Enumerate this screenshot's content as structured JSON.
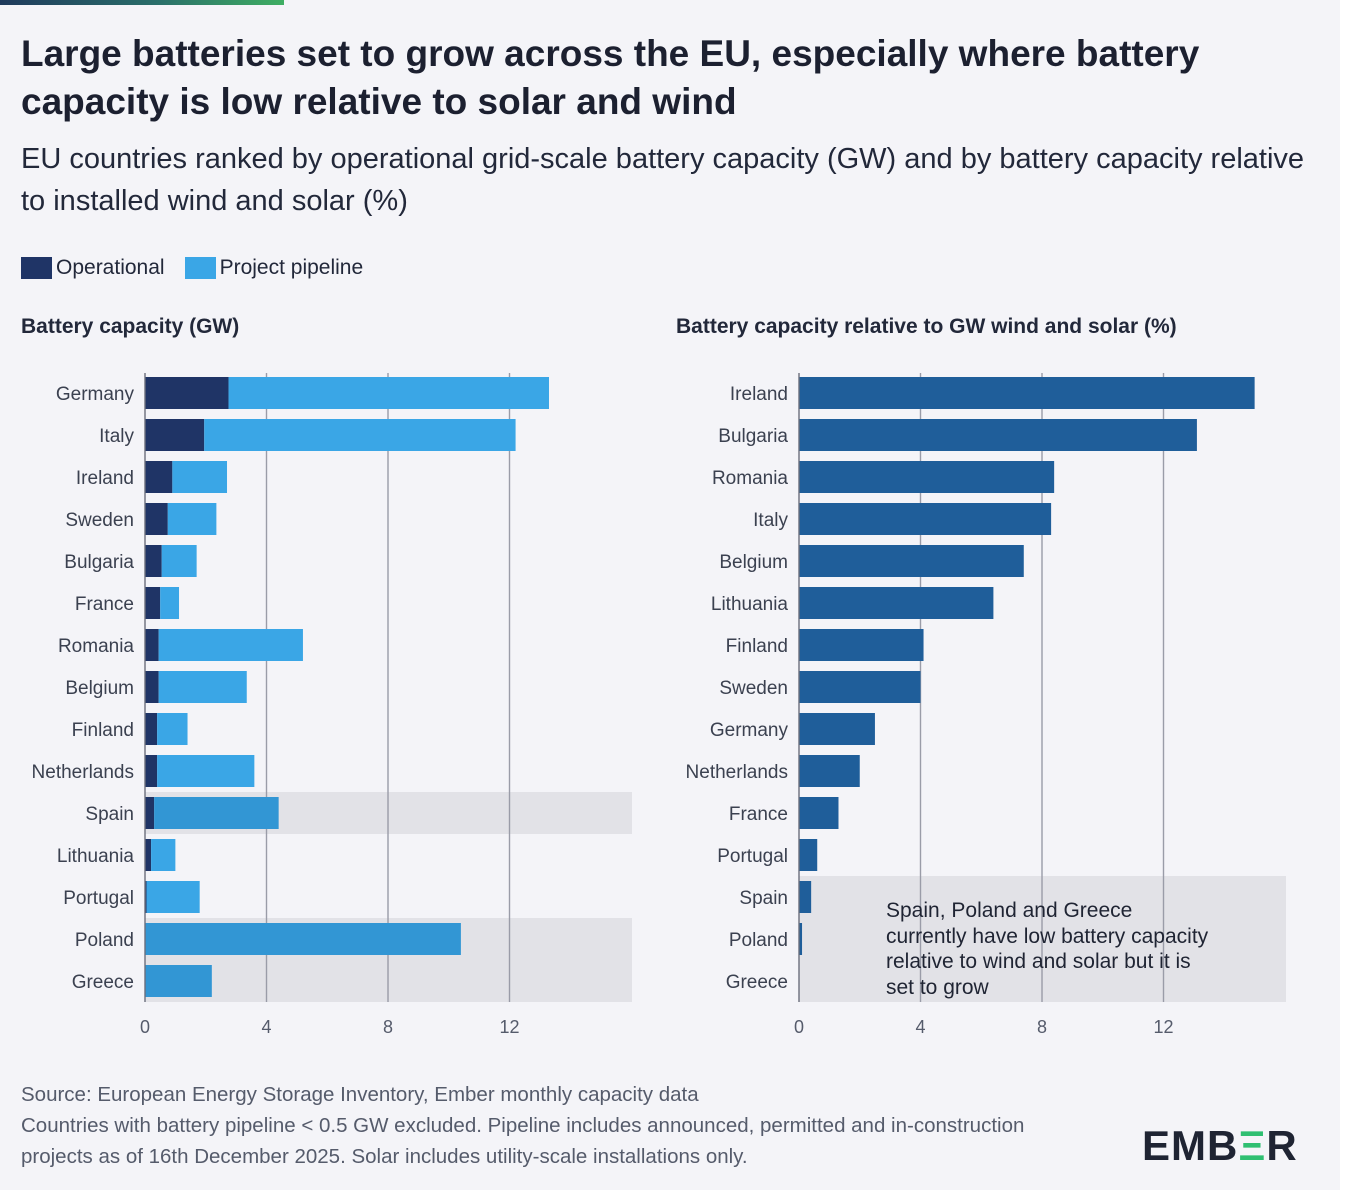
{
  "title": "Large batteries set to grow across the EU, especially where battery capacity is low relative to solar and wind",
  "subtitle": "EU countries ranked by operational grid-scale battery capacity (GW) and by battery capacity relative to installed wind and solar (%)",
  "legend": {
    "operational": "Operational",
    "pipeline": "Project pipeline"
  },
  "colors": {
    "operational": "#1f3466",
    "pipeline": "#3aa6e6",
    "pipeline_highlight": "#3296d4",
    "relative": "#1f5e9a",
    "highlight_band": "#e2e2e7",
    "grid": "#9a9ca8"
  },
  "chart_data": [
    {
      "type": "bar",
      "orientation": "horizontal",
      "stacked": true,
      "title": "Battery capacity (GW)",
      "categories": [
        "Germany",
        "Italy",
        "Ireland",
        "Sweden",
        "Bulgaria",
        "France",
        "Romania",
        "Belgium",
        "Finland",
        "Netherlands",
        "Spain",
        "Lithuania",
        "Portugal",
        "Poland",
        "Greece"
      ],
      "series": [
        {
          "name": "Operational",
          "values": [
            2.75,
            1.95,
            0.9,
            0.75,
            0.55,
            0.5,
            0.45,
            0.45,
            0.4,
            0.4,
            0.3,
            0.2,
            0.05,
            0.0,
            0.0
          ]
        },
        {
          "name": "Project pipeline",
          "values": [
            10.55,
            10.25,
            1.8,
            1.6,
            1.15,
            0.62,
            4.75,
            2.9,
            1.0,
            3.2,
            4.1,
            0.8,
            1.75,
            10.4,
            2.2
          ]
        }
      ],
      "highlighted": [
        "Spain",
        "Poland",
        "Greece"
      ],
      "xlim": [
        0,
        16
      ],
      "xticks": [
        0,
        4,
        8,
        12
      ],
      "grid": true
    },
    {
      "type": "bar",
      "orientation": "horizontal",
      "title": "Battery capacity relative to GW wind and solar (%)",
      "categories": [
        "Ireland",
        "Bulgaria",
        "Romania",
        "Italy",
        "Belgium",
        "Lithuania",
        "Finland",
        "Sweden",
        "Germany",
        "Netherlands",
        "France",
        "Portugal",
        "Spain",
        "Poland",
        "Greece"
      ],
      "values": [
        15.0,
        13.1,
        8.4,
        8.3,
        7.4,
        6.4,
        4.1,
        4.0,
        2.5,
        2.0,
        1.3,
        0.6,
        0.4,
        0.1,
        0.0
      ],
      "highlighted": [
        "Spain",
        "Poland",
        "Greece"
      ],
      "xlim": [
        0,
        16
      ],
      "xticks": [
        0,
        4,
        8,
        12
      ],
      "grid": true,
      "annotation": "Spain, Poland and Greece currently have low battery capacity relative to wind and solar but it is set to grow"
    }
  ],
  "footer": {
    "source": "Source: European Energy Storage Inventory, Ember monthly capacity data",
    "note": "Countries with battery pipeline < 0.5 GW excluded. Pipeline includes announced, permitted and in-construction projects as of 16th December 2025. Solar includes utility-scale installations only."
  },
  "logo": {
    "pre": "EMB",
    "accent": "Ξ",
    "post": "R"
  }
}
